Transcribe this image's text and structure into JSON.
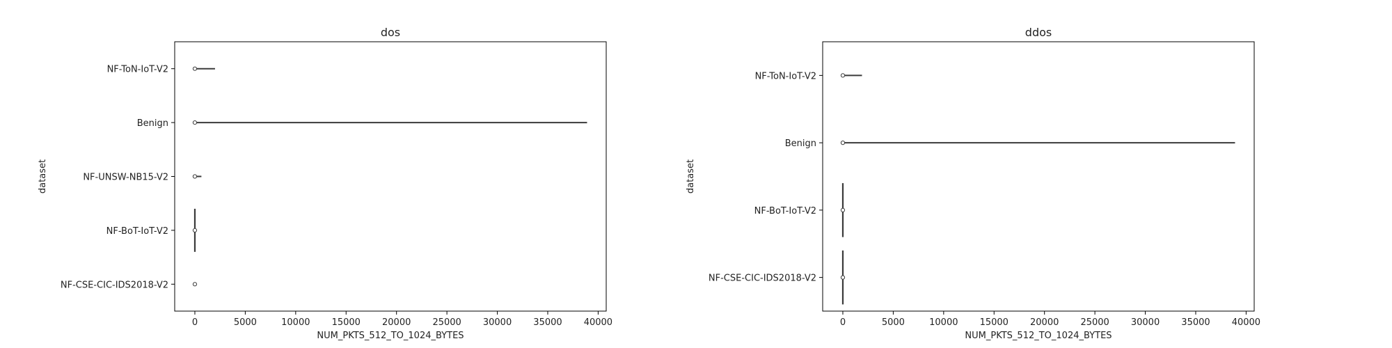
{
  "chart_data": [
    {
      "type": "violin",
      "title": "dos",
      "xlabel": "NUM_PKTS_512_TO_1024_BYTES",
      "ylabel": "dataset",
      "xlim": [
        -2000,
        40800
      ],
      "xticks": [
        0,
        5000,
        10000,
        15000,
        20000,
        25000,
        30000,
        35000,
        40000
      ],
      "xtick_labels": [
        "0",
        "5000",
        "10000",
        "15000",
        "20000",
        "25000",
        "30000",
        "35000",
        "40000"
      ],
      "categories": [
        "NF-ToN-IoT-V2",
        "Benign",
        "NF-UNSW-NB15-V2",
        "NF-BoT-IoT-V2",
        "NF-CSE-CIC-IDS2018-V2"
      ],
      "series": [
        {
          "category": "NF-ToN-IoT-V2",
          "min": 0,
          "max": 2000,
          "median": 0,
          "spread": "thin"
        },
        {
          "category": "Benign",
          "min": 0,
          "max": 38900,
          "median": 0,
          "spread": "thin"
        },
        {
          "category": "NF-UNSW-NB15-V2",
          "min": 0,
          "max": 650,
          "median": 0,
          "spread": "thin"
        },
        {
          "category": "NF-BoT-IoT-V2",
          "min": 0,
          "max": 0,
          "median": 0,
          "spread": "vertical"
        },
        {
          "category": "NF-CSE-CIC-IDS2018-V2",
          "min": 0,
          "max": 0,
          "median": 0,
          "spread": "point"
        }
      ]
    },
    {
      "type": "violin",
      "title": "ddos",
      "xlabel": "NUM_PKTS_512_TO_1024_BYTES",
      "ylabel": "dataset",
      "xlim": [
        -2000,
        40800
      ],
      "xticks": [
        0,
        5000,
        10000,
        15000,
        20000,
        25000,
        30000,
        35000,
        40000
      ],
      "xtick_labels": [
        "0",
        "5000",
        "10000",
        "15000",
        "20000",
        "25000",
        "30000",
        "35000",
        "40000"
      ],
      "categories": [
        "NF-ToN-IoT-V2",
        "Benign",
        "NF-BoT-IoT-V2",
        "NF-CSE-CIC-IDS2018-V2"
      ],
      "series": [
        {
          "category": "NF-ToN-IoT-V2",
          "min": 0,
          "max": 1900,
          "median": 0,
          "spread": "thin"
        },
        {
          "category": "Benign",
          "min": 0,
          "max": 38900,
          "median": 0,
          "spread": "thin"
        },
        {
          "category": "NF-BoT-IoT-V2",
          "min": 0,
          "max": 0,
          "median": 0,
          "spread": "vertical"
        },
        {
          "category": "NF-CSE-CIC-IDS2018-V2",
          "min": 0,
          "max": 0,
          "median": 0,
          "spread": "vertical"
        }
      ]
    }
  ]
}
